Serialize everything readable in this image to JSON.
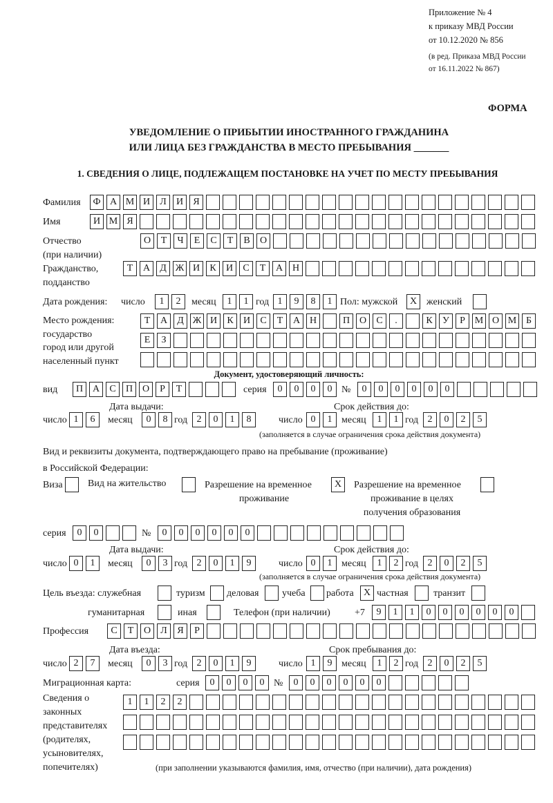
{
  "header": {
    "annex_line1": "Приложение № 4",
    "annex_line2": "к приказу МВД России",
    "annex_line3": "от 10.12.2020 № 856",
    "amend_line1": "(в ред. Приказа МВД России",
    "amend_line2": "от 16.11.2022 № 867)",
    "form_label": "ФОРМА",
    "title_line1": "УВЕДОМЛЕНИЕ О ПРИБЫТИИ ИНОСТРАННОГО ГРАЖДАНИНА",
    "title_line2": "ИЛИ ЛИЦА БЕЗ ГРАЖДАНСТВА В МЕСТО ПРЕБЫВАНИЯ _______",
    "section1": "1. СВЕДЕНИЯ О ЛИЦЕ, ПОДЛЕЖАЩЕМ ПОСТАНОВКЕ НА УЧЕТ ПО МЕСТУ ПРЕБЫВАНИЯ"
  },
  "labels": {
    "surname": "Фамилия",
    "name": "Имя",
    "patronymic_1": "Отчество",
    "patronymic_2": "(при наличии)",
    "citizenship_1": "Гражданство,",
    "citizenship_2": "подданство",
    "birth_date": "Дата рождения:",
    "day": "число",
    "month": "месяц",
    "year": "год",
    "sex": "Пол: мужской",
    "female": "женский",
    "birthplace_1": "Место рождения:",
    "birthplace_2": "государство",
    "birthplace_3": "город или другой",
    "birthplace_4": "населенный пункт",
    "id_doc": "Документ, удостоверяющий личность:",
    "kind": "вид",
    "series": "серия",
    "number": "№",
    "issue_date": "Дата выдачи:",
    "valid_until": "Срок действия до:",
    "validity_note": "(заполняется в случае ограничения срока действия документа)",
    "right_doc_1": "Вид и реквизиты документа, подтверждающего право на пребывание (проживание)",
    "right_doc_2": "в Российской Федерации:",
    "visa": "Виза",
    "residence": "Вид на жительство",
    "temp_res_1": "Разрешение на временное",
    "temp_res_2": "проживание",
    "temp_edu_1": "Разрешение на временное",
    "temp_edu_2": "проживание в целях",
    "temp_edu_3": "получения образования",
    "purpose": "Цель въезда: служебная",
    "tourism": "туризм",
    "business": "деловая",
    "study": "учеба",
    "work": "работа",
    "private": "частная",
    "transit": "транзит",
    "humanitarian": "гуманитарная",
    "other": "иная",
    "phone": "Телефон (при наличии)",
    "phone_prefix": "+7",
    "profession": "Профессия",
    "entry_date": "Дата въезда:",
    "stay_until": "Срок пребывания до:",
    "migration_card": "Миграционная карта:",
    "reps_1": "Сведения о",
    "reps_2": "законных",
    "reps_3": "представителях",
    "reps_4": "(родителях,",
    "reps_5": "усыновителях,",
    "reps_6": "попечителях)",
    "reps_note": "(при заполнении указываются фамилия, имя, отчество (при наличии), дата рождения)"
  },
  "values": {
    "surname": "ФАМИЛИЯ",
    "name": "ИМЯ",
    "patronymic": "ОТЧЕСТВО",
    "citizenship": "ТАДЖИКИСТАН",
    "birth_day": "12",
    "birth_month": "11",
    "birth_year": "1981",
    "sex_male": "X",
    "sex_female": "",
    "birthplace_1": "ТАДЖИКИСТАН ПОС. КУРМОМБ",
    "birthplace_2": "ЕЗ",
    "birthplace_3": "",
    "doc_kind": "ПАСПОРТ",
    "doc_series": "0000",
    "doc_number": "000000",
    "doc_issue_day": "16",
    "doc_issue_month": "08",
    "doc_issue_year": "2018",
    "doc_valid_day": "01",
    "doc_valid_month": "11",
    "doc_valid_year": "2025",
    "visa": "",
    "residence": "",
    "temp_res": "X",
    "temp_edu": "",
    "right_series": "00",
    "right_number": "000000",
    "right_issue_day": "01",
    "right_issue_month": "03",
    "right_issue_year": "2019",
    "right_valid_day": "01",
    "right_valid_month": "12",
    "right_valid_year": "2025",
    "purpose_service": "",
    "purpose_tourism": "",
    "purpose_business": "",
    "purpose_study": "",
    "purpose_work": "X",
    "purpose_private": "",
    "purpose_transit": "",
    "purpose_humanitarian": "",
    "purpose_other": "",
    "phone": "911000000",
    "profession": "СТОЛЯР",
    "entry_day": "27",
    "entry_month": "03",
    "entry_year": "2019",
    "stay_day": "19",
    "stay_month": "12",
    "stay_year": "2025",
    "mc_series": "0000",
    "mc_number": "000000",
    "reps_1": "1122",
    "reps_2": "",
    "reps_3": ""
  }
}
